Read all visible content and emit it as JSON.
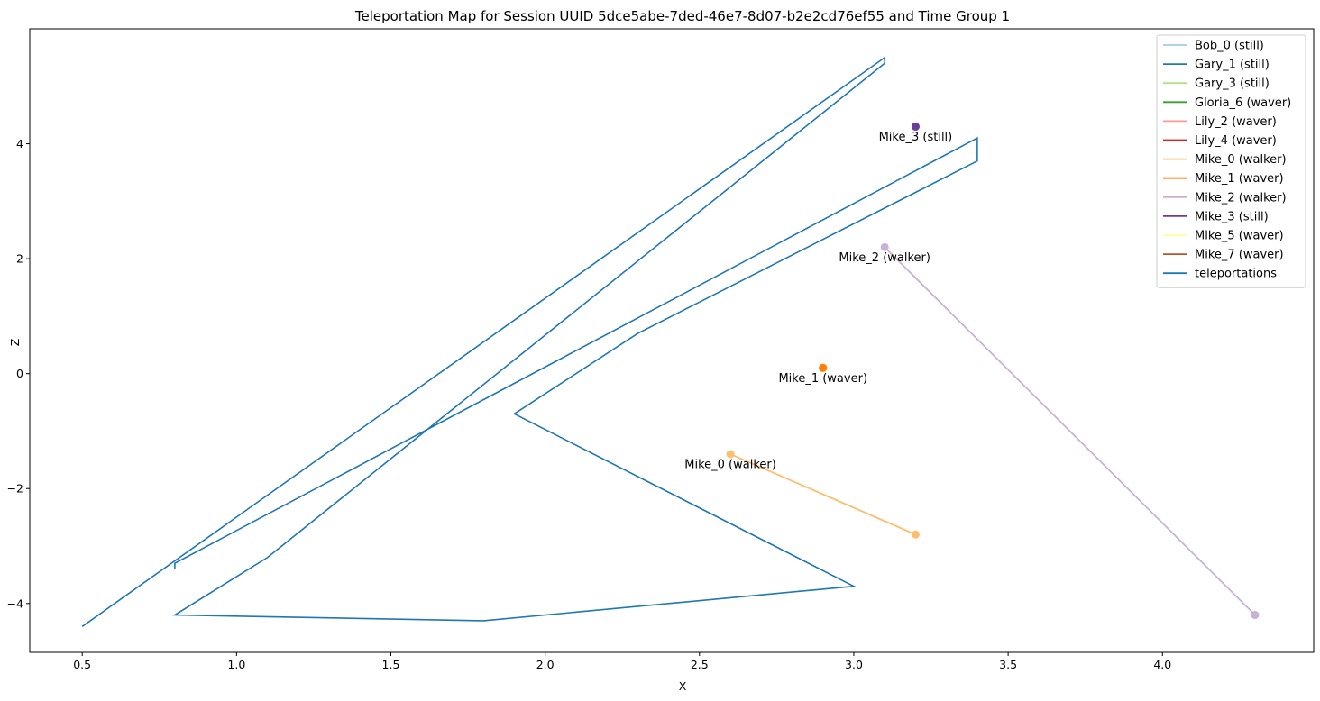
{
  "chart_data": {
    "type": "line",
    "title": "Teleportation Map for Session UUID 5dce5abe-7ded-46e7-8d07-b2e2cd76ef55 and Time Group 1",
    "xlabel": "X",
    "ylabel": "Z",
    "xlim": [
      0.33,
      4.49
    ],
    "ylim": [
      -4.85,
      6.0
    ],
    "xticks": [
      0.5,
      1.0,
      1.5,
      2.0,
      2.5,
      3.0,
      3.5,
      4.0
    ],
    "xtick_labels": [
      "0.5",
      "1.0",
      "1.5",
      "2.0",
      "2.5",
      "3.0",
      "3.5",
      "4.0"
    ],
    "yticks": [
      -4,
      -2,
      0,
      2,
      4
    ],
    "ytick_labels": [
      "−4",
      "−2",
      "0",
      "2",
      "4"
    ],
    "grid": false,
    "legend_position": "top-right",
    "series": [
      {
        "name": "Bob_0 (still)",
        "color": "#a6cee3",
        "x": [],
        "y": []
      },
      {
        "name": "Gary_1 (still)",
        "color": "#1f78b4",
        "x": [],
        "y": []
      },
      {
        "name": "Gary_3 (still)",
        "color": "#b2df8a",
        "x": [],
        "y": []
      },
      {
        "name": "Gloria_6 (waver)",
        "color": "#33a02c",
        "x": [],
        "y": []
      },
      {
        "name": "Lily_2 (waver)",
        "color": "#fb9a99",
        "x": [],
        "y": []
      },
      {
        "name": "Lily_4 (waver)",
        "color": "#e31a1c",
        "x": [],
        "y": []
      },
      {
        "name": "Mike_0 (walker)",
        "color": "#fdbf6f",
        "x": [
          2.6,
          3.2
        ],
        "y": [
          -1.4,
          -2.8
        ],
        "label": "Mike_0 (walker)"
      },
      {
        "name": "Mike_1 (waver)",
        "color": "#ff7f00",
        "x": [
          2.9,
          2.9
        ],
        "y": [
          0.1,
          0.1
        ],
        "label": "Mike_1 (waver)"
      },
      {
        "name": "Mike_2 (walker)",
        "color": "#cab2d6",
        "x": [
          3.1,
          4.3
        ],
        "y": [
          2.2,
          -4.2
        ],
        "label": "Mike_2 (walker)"
      },
      {
        "name": "Mike_3 (still)",
        "color": "#6a3d9a",
        "x": [
          3.2,
          3.2
        ],
        "y": [
          4.3,
          4.3
        ],
        "label": "Mike_3 (still)"
      },
      {
        "name": "Mike_5 (waver)",
        "color": "#ffff99",
        "x": [],
        "y": []
      },
      {
        "name": "Mike_7 (waver)",
        "color": "#b15928",
        "x": [],
        "y": []
      },
      {
        "name": "teleportations",
        "color": "#1f77b4",
        "x": [
          0.5,
          3.1,
          3.1,
          1.1,
          0.8,
          1.8,
          3.0,
          1.9,
          2.3,
          3.4,
          3.4,
          0.8,
          0.8
        ],
        "y": [
          -4.4,
          5.5,
          5.4,
          -3.2,
          -4.2,
          -4.3,
          -3.7,
          -0.7,
          0.7,
          3.7,
          4.1,
          -3.3,
          -3.4
        ]
      }
    ]
  }
}
